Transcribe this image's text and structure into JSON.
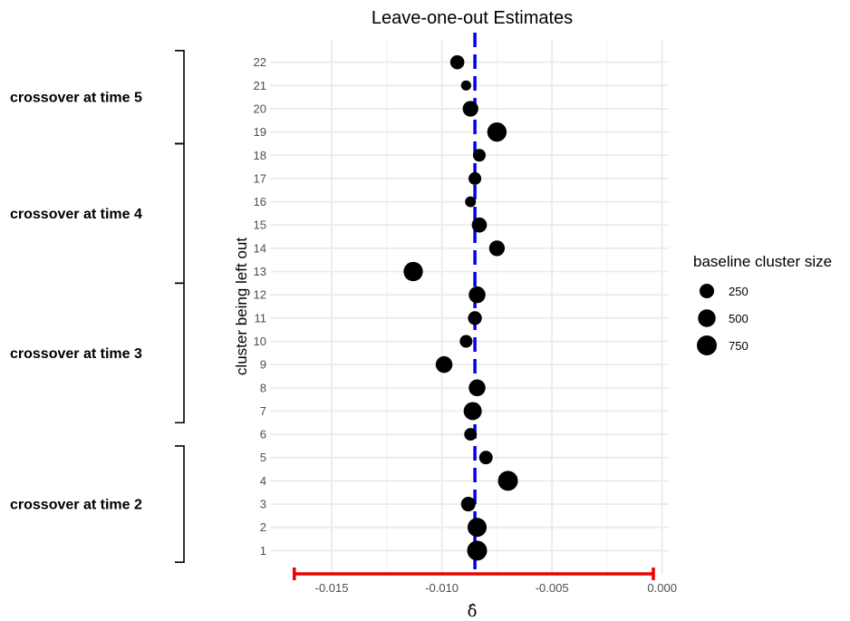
{
  "chart_data": {
    "type": "scatter",
    "title": "Leave-one-out Estimates",
    "xlabel": "δ̂",
    "ylabel": "cluster being left out",
    "xlim": [
      -0.0178,
      0.0003
    ],
    "ylim": [
      0,
      23
    ],
    "x_ticks": [
      -0.015,
      -0.01,
      -0.005,
      0.0
    ],
    "x_tick_labels": [
      "-0.015",
      "-0.010",
      "-0.005",
      "0.000"
    ],
    "y_ticks": [
      1,
      2,
      3,
      4,
      5,
      6,
      7,
      8,
      9,
      10,
      11,
      12,
      13,
      14,
      15,
      16,
      17,
      18,
      19,
      20,
      21,
      22
    ],
    "grid": true,
    "reference_line": {
      "x": -0.0085,
      "color": "#0000ee",
      "style": "dashed"
    },
    "interval": {
      "x_low": -0.0167,
      "x_high": -0.0004,
      "color": "#ee0000"
    },
    "points": [
      {
        "cluster": 1,
        "x": -0.0084,
        "size": 750
      },
      {
        "cluster": 2,
        "x": -0.0084,
        "size": 650
      },
      {
        "cluster": 3,
        "x": -0.0088,
        "size": 250
      },
      {
        "cluster": 4,
        "x": -0.007,
        "size": 750
      },
      {
        "cluster": 5,
        "x": -0.008,
        "size": 180
      },
      {
        "cluster": 6,
        "x": -0.0087,
        "size": 130
      },
      {
        "cluster": 7,
        "x": -0.0086,
        "size": 550
      },
      {
        "cluster": 8,
        "x": -0.0084,
        "size": 420
      },
      {
        "cluster": 9,
        "x": -0.0099,
        "size": 420
      },
      {
        "cluster": 10,
        "x": -0.0089,
        "size": 140
      },
      {
        "cluster": 11,
        "x": -0.0085,
        "size": 200
      },
      {
        "cluster": 12,
        "x": -0.0084,
        "size": 420
      },
      {
        "cluster": 13,
        "x": -0.0113,
        "size": 680
      },
      {
        "cluster": 14,
        "x": -0.0075,
        "size": 330
      },
      {
        "cluster": 15,
        "x": -0.0083,
        "size": 290
      },
      {
        "cluster": 16,
        "x": -0.0087,
        "size": 60
      },
      {
        "cluster": 17,
        "x": -0.0085,
        "size": 140
      },
      {
        "cluster": 18,
        "x": -0.0083,
        "size": 140
      },
      {
        "cluster": 19,
        "x": -0.0075,
        "size": 680
      },
      {
        "cluster": 20,
        "x": -0.0087,
        "size": 330
      },
      {
        "cluster": 21,
        "x": -0.0089,
        "size": 40
      },
      {
        "cluster": 22,
        "x": -0.0093,
        "size": 220
      }
    ],
    "groups": [
      {
        "label": "crossover at time 5",
        "from": 19,
        "to": 22
      },
      {
        "label": "crossover at time 4",
        "from": 13,
        "to": 18
      },
      {
        "label": "crossover at time 3",
        "from": 7,
        "to": 12
      },
      {
        "label": "crossover at time 2",
        "from": 1,
        "to": 5
      }
    ],
    "legend": {
      "title": "baseline cluster size",
      "position": "right",
      "entries": [
        {
          "label": "250",
          "size": 250
        },
        {
          "label": "500",
          "size": 500
        },
        {
          "label": "750",
          "size": 750
        }
      ]
    }
  }
}
